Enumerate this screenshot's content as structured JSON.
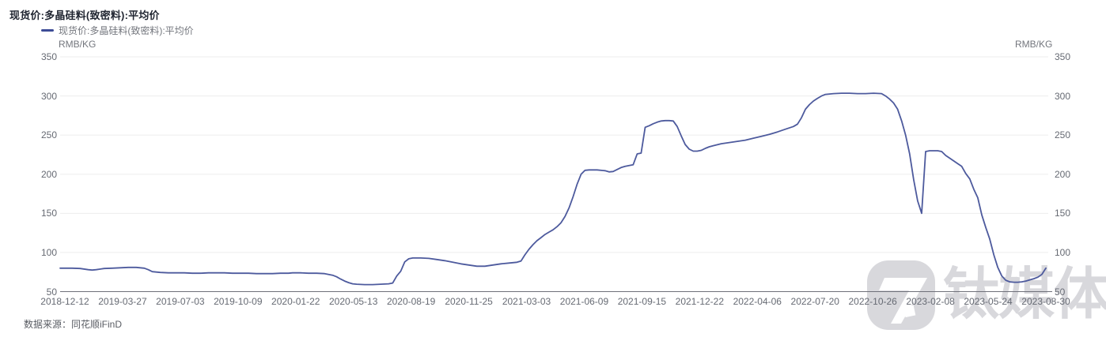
{
  "title": "现货价:多晶硅料(致密料):平均价",
  "legend": {
    "label": "现货价:多晶硅料(致密料):平均价"
  },
  "axes": {
    "unit_left": "RMB/KG",
    "unit_right": "RMB/KG",
    "y_ticks": [
      350,
      300,
      250,
      200,
      150,
      100,
      50
    ],
    "x_ticks": [
      "2018-12-12",
      "2019-03-27",
      "2019-07-03",
      "2019-10-09",
      "2020-01-22",
      "2020-05-13",
      "2020-08-19",
      "2020-11-25",
      "2021-03-03",
      "2021-06-09",
      "2021-09-15",
      "2021-12-22",
      "2022-04-06",
      "2022-07-20",
      "2022-10-26",
      "2023-02-08",
      "2023-05-24",
      "2023-08-30"
    ]
  },
  "footer": {
    "source_text": "数据来源：同花顺iFinD"
  },
  "watermark": {
    "text": "钛媒体"
  },
  "colors": {
    "line": "#4d5a9d",
    "legend_swatch": "#3d4c96",
    "grid": "#ededed",
    "axis_line": "#6e7079",
    "tick_label": "#666a73",
    "title": "#1f2430",
    "watermark": "#d8d8dc"
  },
  "chart_data": {
    "type": "line",
    "title": "现货价:多晶硅料(致密料):平均价",
    "ylabel": "RMB/KG",
    "ylim": [
      50,
      350
    ],
    "grid": "horizontal-only",
    "legend_position": "top-left",
    "x_range": [
      "2018-12-12",
      "2023-08-30"
    ],
    "series": [
      {
        "name": "现货价:多晶硅料(致密料):平均价",
        "points": [
          [
            "2018-12-12",
            80
          ],
          [
            "2018-12-19",
            80
          ],
          [
            "2019-01-02",
            80
          ],
          [
            "2019-01-16",
            79.5
          ],
          [
            "2019-01-30",
            78
          ],
          [
            "2019-02-06",
            77.5
          ],
          [
            "2019-02-13",
            78
          ],
          [
            "2019-02-27",
            79.5
          ],
          [
            "2019-03-13",
            80
          ],
          [
            "2019-03-27",
            80.5
          ],
          [
            "2019-04-10",
            81
          ],
          [
            "2019-04-24",
            81
          ],
          [
            "2019-05-08",
            80
          ],
          [
            "2019-05-15",
            78
          ],
          [
            "2019-05-22",
            75.5
          ],
          [
            "2019-06-05",
            74.5
          ],
          [
            "2019-06-19",
            74
          ],
          [
            "2019-07-03",
            74
          ],
          [
            "2019-07-17",
            74
          ],
          [
            "2019-07-31",
            73.5
          ],
          [
            "2019-08-14",
            73.5
          ],
          [
            "2019-08-28",
            74
          ],
          [
            "2019-09-11",
            74
          ],
          [
            "2019-09-25",
            74
          ],
          [
            "2019-10-09",
            73.5
          ],
          [
            "2019-10-23",
            73.5
          ],
          [
            "2019-11-06",
            73.5
          ],
          [
            "2019-11-20",
            73
          ],
          [
            "2019-12-04",
            73
          ],
          [
            "2019-12-18",
            73
          ],
          [
            "2020-01-01",
            73.5
          ],
          [
            "2020-01-15",
            73.5
          ],
          [
            "2020-01-22",
            74
          ],
          [
            "2020-02-05",
            74
          ],
          [
            "2020-02-19",
            73.5
          ],
          [
            "2020-03-04",
            73.5
          ],
          [
            "2020-03-18",
            73
          ],
          [
            "2020-04-01",
            71
          ],
          [
            "2020-04-08",
            69
          ],
          [
            "2020-04-15",
            66
          ],
          [
            "2020-04-22",
            63.5
          ],
          [
            "2020-04-29",
            61.5
          ],
          [
            "2020-05-06",
            60
          ],
          [
            "2020-05-13",
            59.5
          ],
          [
            "2020-05-27",
            59
          ],
          [
            "2020-06-10",
            59
          ],
          [
            "2020-06-24",
            59.5
          ],
          [
            "2020-07-08",
            60
          ],
          [
            "2020-07-15",
            61
          ],
          [
            "2020-07-22",
            70
          ],
          [
            "2020-07-29",
            76
          ],
          [
            "2020-08-05",
            88
          ],
          [
            "2020-08-12",
            92
          ],
          [
            "2020-08-19",
            93
          ],
          [
            "2020-09-02",
            93
          ],
          [
            "2020-09-16",
            92.5
          ],
          [
            "2020-09-30",
            91
          ],
          [
            "2020-10-14",
            89.5
          ],
          [
            "2020-10-28",
            87.5
          ],
          [
            "2020-11-11",
            85.5
          ],
          [
            "2020-11-25",
            84
          ],
          [
            "2020-12-09",
            82.5
          ],
          [
            "2020-12-23",
            82.5
          ],
          [
            "2021-01-06",
            84
          ],
          [
            "2021-01-20",
            85.5
          ],
          [
            "2021-02-03",
            86.5
          ],
          [
            "2021-02-17",
            87.5
          ],
          [
            "2021-02-24",
            89
          ],
          [
            "2021-03-03",
            97
          ],
          [
            "2021-03-10",
            104
          ],
          [
            "2021-03-17",
            110
          ],
          [
            "2021-03-24",
            115
          ],
          [
            "2021-03-31",
            119
          ],
          [
            "2021-04-07",
            123
          ],
          [
            "2021-04-14",
            126
          ],
          [
            "2021-04-21",
            129
          ],
          [
            "2021-04-28",
            133
          ],
          [
            "2021-05-05",
            138
          ],
          [
            "2021-05-12",
            146
          ],
          [
            "2021-05-19",
            157
          ],
          [
            "2021-05-26",
            171
          ],
          [
            "2021-06-02",
            187
          ],
          [
            "2021-06-09",
            200
          ],
          [
            "2021-06-16",
            205
          ],
          [
            "2021-06-23",
            205.5
          ],
          [
            "2021-07-07",
            205.5
          ],
          [
            "2021-07-21",
            204.5
          ],
          [
            "2021-07-28",
            203
          ],
          [
            "2021-08-04",
            203.5
          ],
          [
            "2021-08-11",
            206
          ],
          [
            "2021-08-18",
            208.5
          ],
          [
            "2021-08-25",
            210
          ],
          [
            "2021-09-01",
            211
          ],
          [
            "2021-09-08",
            212
          ],
          [
            "2021-09-15",
            226
          ],
          [
            "2021-09-22",
            227
          ],
          [
            "2021-09-29",
            260
          ],
          [
            "2021-10-06",
            262
          ],
          [
            "2021-10-13",
            264.5
          ],
          [
            "2021-10-20",
            266.5
          ],
          [
            "2021-10-27",
            268
          ],
          [
            "2021-11-03",
            268.5
          ],
          [
            "2021-11-10",
            268.5
          ],
          [
            "2021-11-17",
            268
          ],
          [
            "2021-11-24",
            261
          ],
          [
            "2021-12-01",
            249
          ],
          [
            "2021-12-08",
            238
          ],
          [
            "2021-12-15",
            232
          ],
          [
            "2021-12-22",
            229.5
          ],
          [
            "2021-12-29",
            229.5
          ],
          [
            "2022-01-05",
            230.5
          ],
          [
            "2022-01-12",
            233
          ],
          [
            "2022-01-19",
            235
          ],
          [
            "2022-01-26",
            236.5
          ],
          [
            "2022-02-09",
            239
          ],
          [
            "2022-02-23",
            240.5
          ],
          [
            "2022-03-09",
            242
          ],
          [
            "2022-03-23",
            243.5
          ],
          [
            "2022-04-06",
            246
          ],
          [
            "2022-04-20",
            248.5
          ],
          [
            "2022-05-04",
            251
          ],
          [
            "2022-05-18",
            254
          ],
          [
            "2022-06-01",
            257.5
          ],
          [
            "2022-06-15",
            261
          ],
          [
            "2022-06-22",
            264
          ],
          [
            "2022-06-29",
            272
          ],
          [
            "2022-07-06",
            283
          ],
          [
            "2022-07-13",
            289
          ],
          [
            "2022-07-20",
            293.5
          ],
          [
            "2022-07-27",
            297
          ],
          [
            "2022-08-03",
            300
          ],
          [
            "2022-08-10",
            302
          ],
          [
            "2022-08-24",
            303
          ],
          [
            "2022-09-07",
            303.5
          ],
          [
            "2022-09-21",
            303.5
          ],
          [
            "2022-10-05",
            303
          ],
          [
            "2022-10-19",
            303
          ],
          [
            "2022-11-02",
            303.5
          ],
          [
            "2022-11-16",
            303
          ],
          [
            "2022-11-23",
            300
          ],
          [
            "2022-11-30",
            296
          ],
          [
            "2022-12-07",
            291
          ],
          [
            "2022-12-14",
            283
          ],
          [
            "2022-12-21",
            268
          ],
          [
            "2022-12-28",
            250
          ],
          [
            "2023-01-04",
            226
          ],
          [
            "2023-01-11",
            193
          ],
          [
            "2023-01-18",
            166
          ],
          [
            "2023-01-25",
            150
          ],
          [
            "2023-02-01",
            229
          ],
          [
            "2023-02-08",
            230
          ],
          [
            "2023-02-15",
            230
          ],
          [
            "2023-02-22",
            230
          ],
          [
            "2023-03-01",
            229
          ],
          [
            "2023-03-08",
            224
          ],
          [
            "2023-03-15",
            220.5
          ],
          [
            "2023-03-22",
            217
          ],
          [
            "2023-03-29",
            213.5
          ],
          [
            "2023-04-05",
            210
          ],
          [
            "2023-04-12",
            201
          ],
          [
            "2023-04-19",
            194
          ],
          [
            "2023-04-26",
            181
          ],
          [
            "2023-05-03",
            170
          ],
          [
            "2023-05-10",
            148
          ],
          [
            "2023-05-17",
            132
          ],
          [
            "2023-05-24",
            117
          ],
          [
            "2023-05-31",
            97
          ],
          [
            "2023-06-07",
            81
          ],
          [
            "2023-06-14",
            70
          ],
          [
            "2023-06-21",
            64.5
          ],
          [
            "2023-06-28",
            62.5
          ],
          [
            "2023-07-05",
            62
          ],
          [
            "2023-07-12",
            62
          ],
          [
            "2023-07-19",
            62.5
          ],
          [
            "2023-07-26",
            63.5
          ],
          [
            "2023-08-02",
            65
          ],
          [
            "2023-08-09",
            66.5
          ],
          [
            "2023-08-16",
            68.5
          ],
          [
            "2023-08-23",
            72
          ],
          [
            "2023-08-30",
            80
          ]
        ]
      }
    ]
  }
}
